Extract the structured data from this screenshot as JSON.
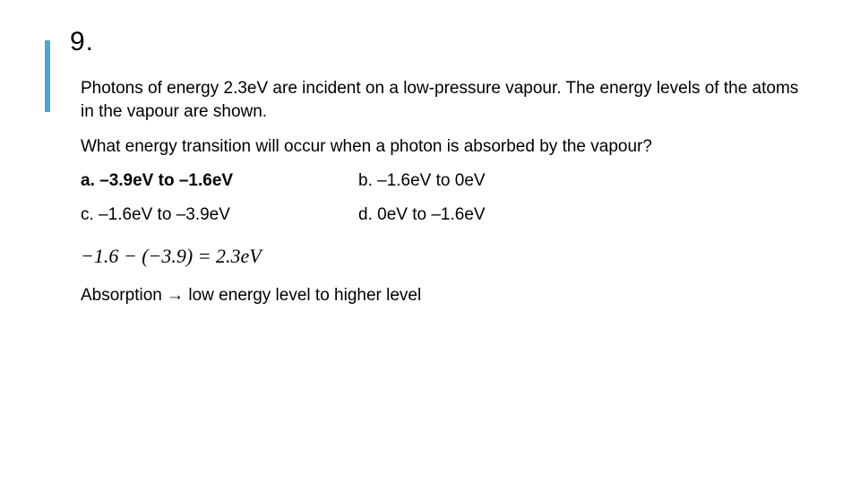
{
  "question_number": "9.",
  "paragraph1": "Photons of energy 2.3eV are incident on a low-pressure vapour. The energy levels of the atoms in the vapour are shown.",
  "paragraph2": "What energy transition will occur when a photon is absorbed by the vapour?",
  "options": {
    "a": "a. –3.9eV to –1.6eV",
    "b": "b. –1.6eV to 0eV",
    "c": "c. –1.6eV to –3.9eV",
    "d": "d. 0eV to –1.6eV"
  },
  "equation": "−1.6 − (−3.9) = 2.3eV",
  "conclusion": "Absorption → low energy level to higher level",
  "colors": {
    "accent": "#50a5d0",
    "text": "#000000",
    "background": "#ffffff"
  },
  "fontsizes": {
    "number": 30,
    "body": 19,
    "equation": 22
  }
}
